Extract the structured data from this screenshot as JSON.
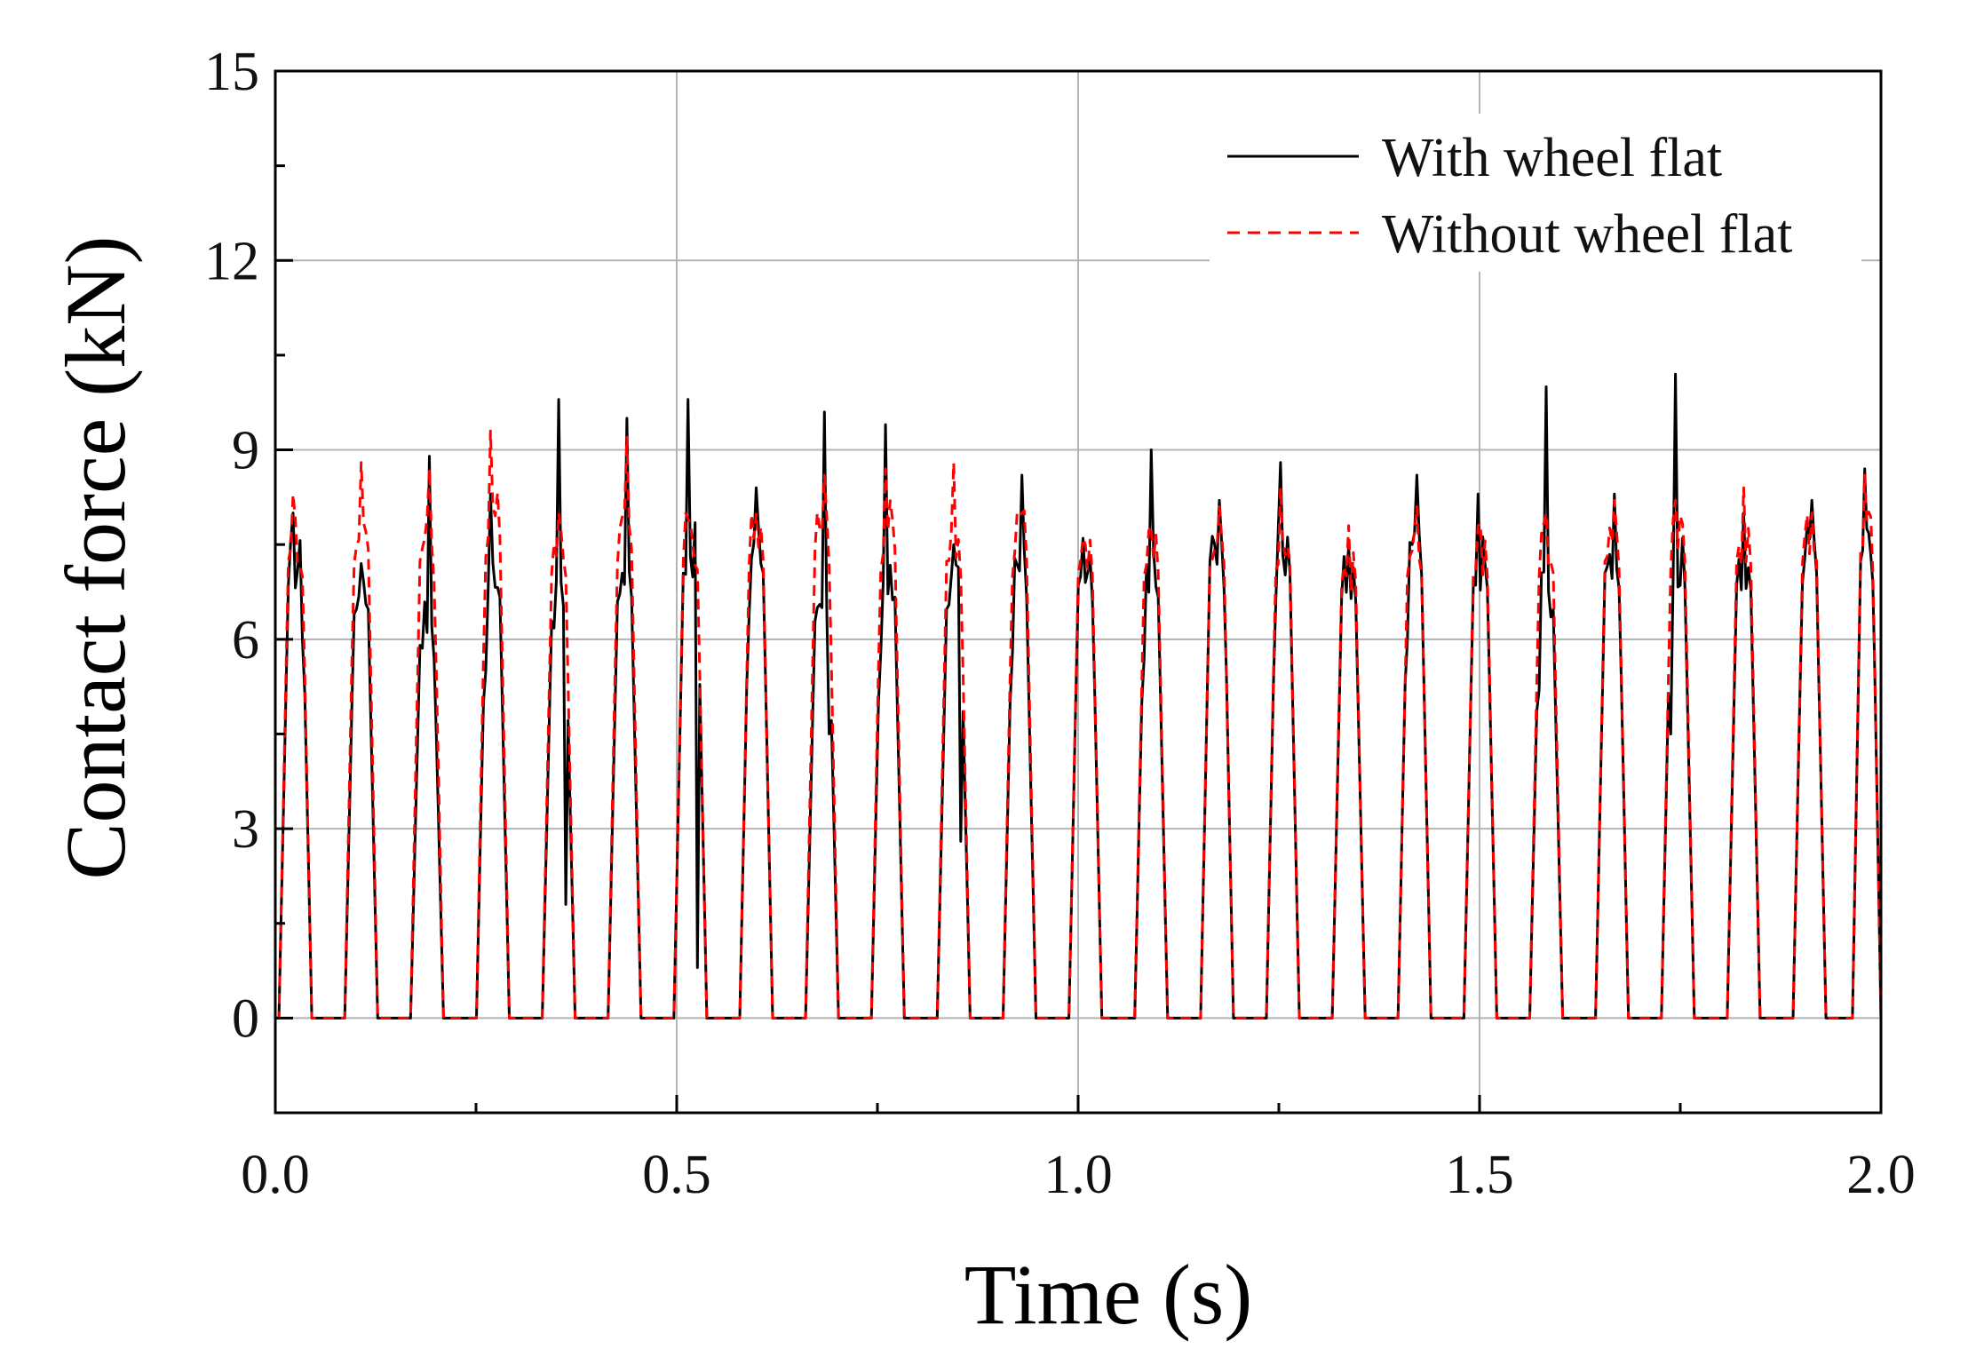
{
  "chart_data": {
    "type": "line",
    "title": "",
    "xlabel": "Time (s)",
    "ylabel": "Contact force (kN)",
    "xlim": [
      0.0,
      2.0
    ],
    "ylim": [
      -1.5,
      15
    ],
    "xticks": [
      0.0,
      0.5,
      1.0,
      1.5,
      2.0
    ],
    "xtick_labels": [
      "0.0",
      "0.5",
      "1.0",
      "1.5",
      "2.0"
    ],
    "xminor": [
      0.25,
      0.75,
      1.25,
      1.75
    ],
    "yticks": [
      0,
      3,
      6,
      9,
      12,
      15
    ],
    "ytick_labels": [
      "0",
      "3",
      "6",
      "9",
      "12",
      "15"
    ],
    "yminor": [
      1.5,
      4.5,
      7.5,
      10.5,
      13.5
    ],
    "grid": true,
    "legend_position": "top-right",
    "series": [
      {
        "name": "With wheel flat",
        "color": "#000000",
        "style": "solid",
        "pulse_centers": [
          0.025,
          0.107,
          0.189,
          0.271,
          0.353,
          0.435,
          0.517,
          0.599,
          0.681,
          0.763,
          0.845,
          0.927,
          1.009,
          1.091,
          1.173,
          1.255,
          1.337,
          1.419,
          1.501,
          1.583,
          1.665,
          1.747,
          1.829,
          1.911,
          1.985
        ],
        "pulse_peaks": [
          8.0,
          7.2,
          8.9,
          8.3,
          9.8,
          9.5,
          9.8,
          8.4,
          9.6,
          9.4,
          7.5,
          8.6,
          7.6,
          9.0,
          8.2,
          8.8,
          7.5,
          8.6,
          8.3,
          10.0,
          8.3,
          10.2,
          8.0,
          8.2,
          8.7
        ],
        "pulse_plateaus": [
          7.2,
          6.8,
          6.2,
          7.0,
          6.6,
          7.0,
          7.4,
          7.4,
          6.6,
          7.0,
          6.8,
          7.0,
          7.2,
          7.0,
          7.6,
          7.4,
          7.0,
          7.4,
          7.2,
          6.8,
          7.4,
          7.2,
          7.2,
          7.4,
          7.6
        ],
        "pulse_dips": [
          6.0,
          6.4,
          5.7,
          5.5,
          1.8,
          6.6,
          0.8,
          6.4,
          4.5,
          5.8,
          2.8,
          5.8,
          6.6,
          5.7,
          6.8,
          6.6,
          6.6,
          6.0,
          6.8,
          5.2,
          6.8,
          4.5,
          6.8,
          6.9,
          6.9
        ]
      },
      {
        "name": "Without wheel flat",
        "color": "#ff0000",
        "style": "dashed",
        "pulse_centers": [
          0.025,
          0.107,
          0.189,
          0.271,
          0.353,
          0.435,
          0.517,
          0.599,
          0.681,
          0.763,
          0.845,
          0.927,
          1.009,
          1.091,
          1.173,
          1.255,
          1.337,
          1.419,
          1.501,
          1.583,
          1.665,
          1.747,
          1.829,
          1.911,
          1.985
        ],
        "pulse_peaks": [
          8.3,
          8.8,
          8.7,
          9.3,
          8.0,
          9.2,
          7.9,
          8.0,
          8.6,
          8.7,
          8.8,
          8.0,
          7.6,
          7.8,
          8.1,
          8.4,
          7.8,
          8.1,
          7.8,
          8.0,
          8.2,
          8.2,
          8.4,
          8.0,
          8.6
        ],
        "pulse_plateaus": [
          7.6,
          7.8,
          7.6,
          8.0,
          7.4,
          7.8,
          7.6,
          7.6,
          7.8,
          7.8,
          7.6,
          7.6,
          7.4,
          7.4,
          7.6,
          7.6,
          7.2,
          7.4,
          7.4,
          7.4,
          7.6,
          7.6,
          7.6,
          7.6,
          7.8
        ],
        "pulse_dips": [
          7.0,
          7.2,
          6.9,
          7.3,
          7.0,
          7.2,
          7.1,
          7.2,
          7.2,
          7.1,
          7.0,
          7.0,
          7.0,
          7.0,
          7.2,
          7.1,
          6.9,
          7.0,
          7.0,
          7.0,
          7.1,
          7.1,
          7.2,
          7.2,
          7.1
        ]
      }
    ]
  }
}
